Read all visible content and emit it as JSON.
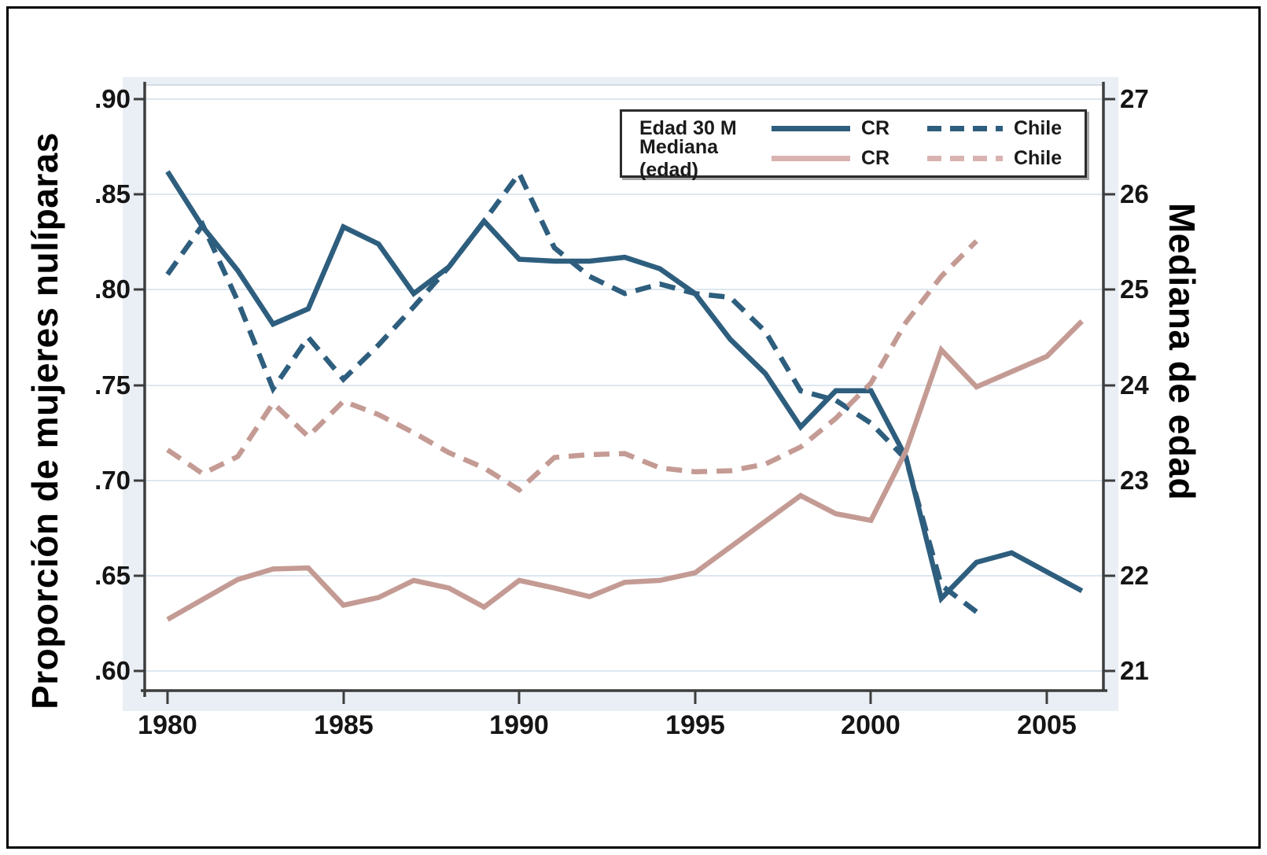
{
  "titles": {
    "y_left": "Proporción de mujeres nulíparas",
    "y_right": "Mediana de edad"
  },
  "axes": {
    "left_labels": [
      ".90",
      ".85",
      ".80",
      ".75",
      ".70",
      ".65",
      ".60"
    ],
    "right_labels": [
      "27",
      "26",
      "25",
      "24",
      "23",
      "22",
      "21"
    ],
    "x_labels": [
      "1980",
      "1985",
      "1990",
      "1995",
      "2000",
      "2005"
    ]
  },
  "legend": {
    "rows": [
      {
        "label": "Edad 30 M",
        "series_color": "blue",
        "cr": "CR",
        "chile": "Chile"
      },
      {
        "label": "Mediana (edad)",
        "series_color": "pink",
        "cr": "CR",
        "chile": "Chile"
      }
    ]
  },
  "colors": {
    "blue": "#2e5e7e",
    "pink": "#c49b94",
    "legend_pink": "#d9b3b1",
    "axis": "#3d3d3d",
    "grid": "#dce7f0",
    "plot_bg": "#ffffff",
    "graph_region_bg": "#e9eff5",
    "text": "#151515"
  },
  "chart_data": {
    "type": "line",
    "title": "",
    "xlabel": "",
    "ylabel_left": "Proporción de mujeres nulíparas",
    "ylabel_right": "Mediana de edad",
    "x_ticks": [
      1980,
      1985,
      1990,
      1995,
      2000,
      2005
    ],
    "left_ticks": [
      0.9,
      0.85,
      0.8,
      0.75,
      0.7,
      0.65,
      0.6
    ],
    "right_ticks": [
      27,
      26,
      25,
      24,
      23,
      22,
      21
    ],
    "xlim": [
      1979.3,
      2006.6
    ],
    "ylim_left": [
      0.59,
      0.907
    ],
    "ylim_right": [
      20.9,
      27.1
    ],
    "grid": "horizontal",
    "legend_position": "top-right",
    "series": [
      {
        "name": "Edad 30 M — CR",
        "axis": "left",
        "style": "solid",
        "color": "blue",
        "x": [
          1980,
          1981,
          1982,
          1983,
          1984,
          1985,
          1986,
          1987,
          1988,
          1989,
          1990,
          1991,
          1992,
          1993,
          1994,
          1995,
          1996,
          1997,
          1998,
          1999,
          2000,
          2001,
          2002,
          2003,
          2004,
          2005,
          2006
        ],
        "values": [
          0.862,
          0.833,
          0.81,
          0.782,
          0.79,
          0.833,
          0.824,
          0.798,
          0.812,
          0.836,
          0.816,
          0.815,
          0.815,
          0.817,
          0.811,
          0.798,
          0.774,
          0.756,
          0.728,
          0.747,
          0.747,
          0.712,
          0.638,
          0.657,
          0.662,
          0.652,
          0.642
        ]
      },
      {
        "name": "Edad 30 M — Chile",
        "axis": "left",
        "style": "dashed",
        "color": "blue",
        "x": [
          1980,
          1981,
          1982,
          1983,
          1984,
          1985,
          1986,
          1987,
          1988,
          1989,
          1990,
          1991,
          1992,
          1993,
          1994,
          1995,
          1996,
          1997,
          1998,
          1999,
          2000,
          2001,
          2002,
          2003
        ],
        "values": [
          0.808,
          0.834,
          0.794,
          0.748,
          0.775,
          0.753,
          0.771,
          0.791,
          0.812,
          0.836,
          0.861,
          0.822,
          0.807,
          0.798,
          0.803,
          0.798,
          0.796,
          0.778,
          0.747,
          0.742,
          0.73,
          0.711,
          0.645,
          0.631
        ]
      },
      {
        "name": "Mediana (edad) — CR",
        "axis": "right",
        "style": "solid",
        "color": "pink",
        "x": [
          1980,
          1981,
          1982,
          1983,
          1984,
          1985,
          1986,
          1987,
          1988,
          1989,
          1990,
          1991,
          1992,
          1993,
          1994,
          1995,
          1996,
          1997,
          1998,
          1999,
          2000,
          2001,
          2002,
          2003,
          2004,
          2005,
          2006
        ],
        "values": [
          21.54,
          21.75,
          21.96,
          22.07,
          22.08,
          21.69,
          21.77,
          21.95,
          21.87,
          21.67,
          21.95,
          21.87,
          21.78,
          21.93,
          21.95,
          22.03,
          22.3,
          22.57,
          22.84,
          22.65,
          22.58,
          23.31,
          24.37,
          23.98,
          24.14,
          24.3,
          24.67
        ]
      },
      {
        "name": "Mediana (edad) — Chile",
        "axis": "right",
        "style": "dashed",
        "color": "pink",
        "x": [
          1980,
          1981,
          1982,
          1983,
          1984,
          1985,
          1986,
          1987,
          1988,
          1989,
          1990,
          1991,
          1992,
          1993,
          1994,
          1995,
          1996,
          1997,
          1998,
          1999,
          2000,
          2001,
          2002,
          2003
        ],
        "values": [
          23.32,
          23.07,
          23.25,
          23.81,
          23.46,
          23.83,
          23.69,
          23.5,
          23.29,
          23.13,
          22.9,
          23.24,
          23.27,
          23.28,
          23.13,
          23.09,
          23.1,
          23.17,
          23.35,
          23.65,
          24.02,
          24.66,
          25.14,
          25.51
        ]
      }
    ]
  }
}
